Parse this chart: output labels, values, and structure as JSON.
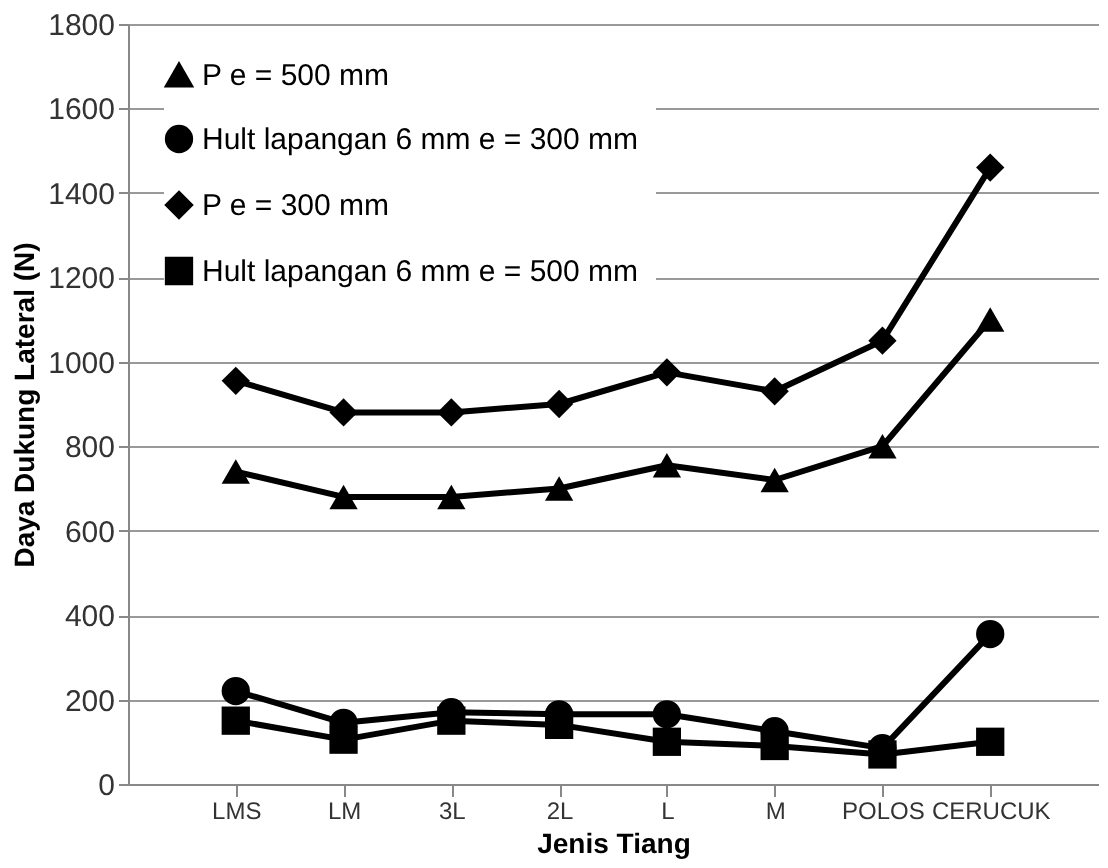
{
  "chart_data": {
    "type": "line",
    "xlabel": "Jenis Tiang",
    "ylabel": "Daya Dukung Lateral (N)",
    "categories": [
      "LMS",
      "LM",
      "3L",
      "2L",
      "L",
      "M",
      "POLOS",
      "CERUCUK"
    ],
    "series": [
      {
        "name": "P  e = 500 mm",
        "color": "#000000",
        "marker": "triangle",
        "values": [
          740,
          680,
          680,
          700,
          755,
          720,
          800,
          1100
        ]
      },
      {
        "name": "Hult lapangan 6 mm e = 300 mm",
        "color": "#000000",
        "marker": "circle",
        "values": [
          220,
          145,
          170,
          165,
          165,
          125,
          85,
          355
        ]
      },
      {
        "name": "P  e = 300 mm",
        "color": "#000000",
        "marker": "diamond",
        "values": [
          955,
          880,
          880,
          900,
          975,
          930,
          1050,
          1460
        ]
      },
      {
        "name": "Hult  lapangan  6 mm e = 500 mm",
        "color": "#000000",
        "marker": "square",
        "values": [
          150,
          105,
          150,
          140,
          100,
          90,
          70,
          100
        ]
      }
    ],
    "ylim": [
      0,
      1800
    ],
    "yticks": [
      0,
      200,
      400,
      600,
      800,
      1000,
      1200,
      1400,
      1600,
      1800
    ],
    "grid": "y",
    "legend": "top left",
    "line_style": "solid"
  }
}
